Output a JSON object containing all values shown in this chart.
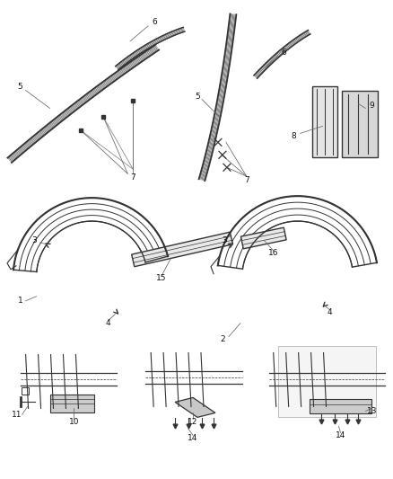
{
  "bg_color": "#ffffff",
  "line_color": "#333333",
  "label_color": "#111111",
  "label_fontsize": 6.5,
  "fig_width": 4.38,
  "fig_height": 5.33,
  "dpi": 100
}
